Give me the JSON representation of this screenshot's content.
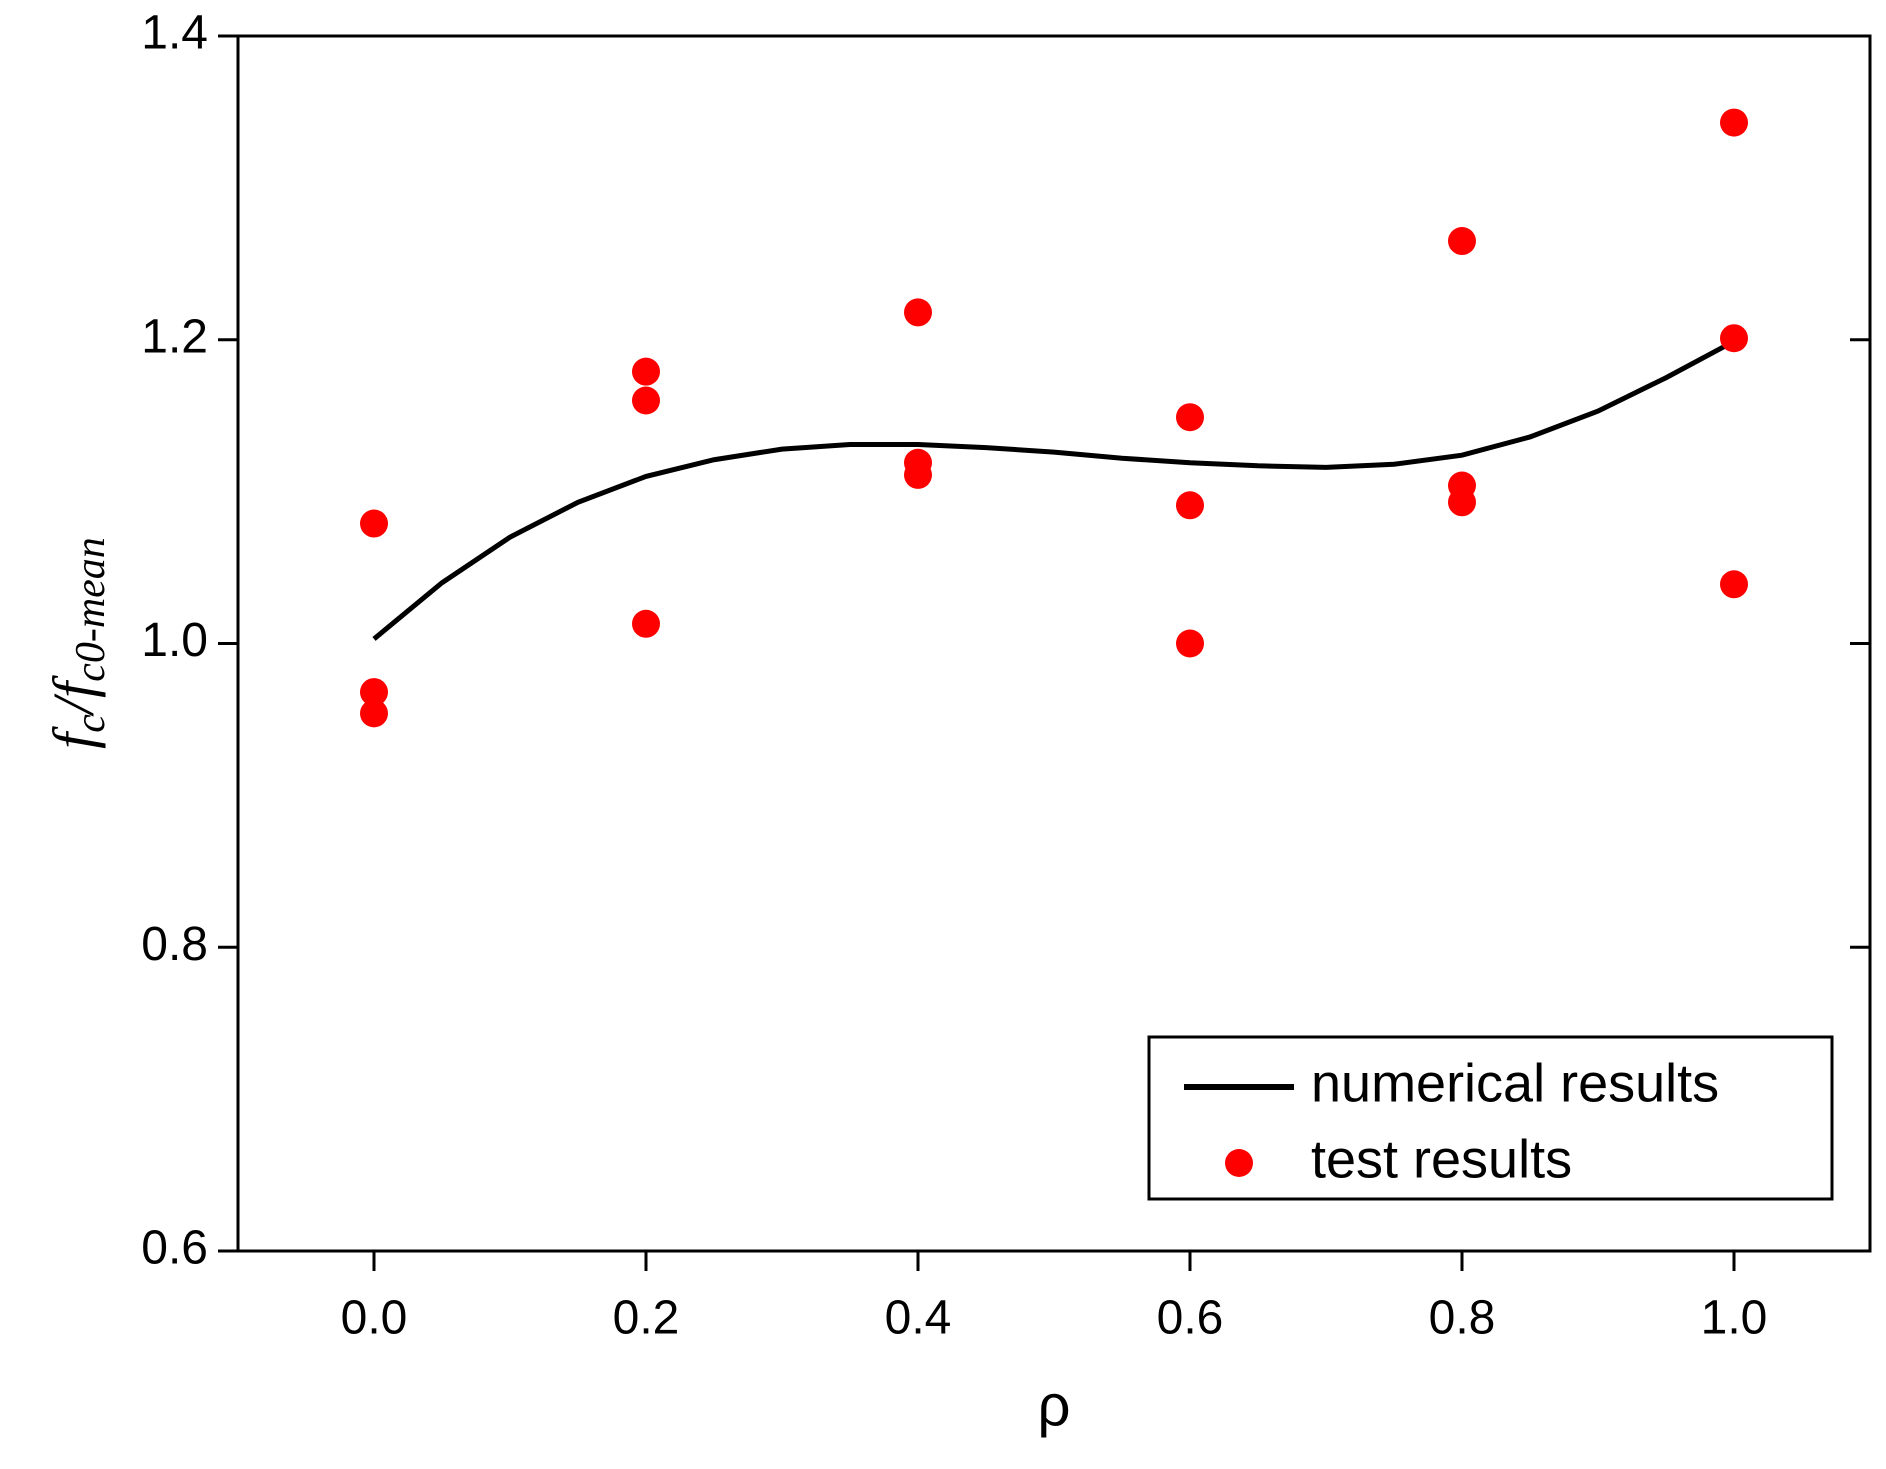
{
  "chart_data": {
    "type": "scatter",
    "xlabel": "ρ",
    "ylabel": [
      "f",
      "c",
      "/f",
      "c0-mean"
    ],
    "xlim": [
      -0.1,
      1.1
    ],
    "ylim": [
      0.6,
      1.4
    ],
    "xticks": [
      {
        "value": 0,
        "label": "0.0"
      },
      0.2,
      0.4,
      0.6,
      0.8,
      {
        "value": 1,
        "label": "1.0"
      }
    ],
    "yticks": [
      0.6,
      0.8,
      {
        "value": 1,
        "label": "1.0"
      },
      1.2,
      1.4
    ],
    "legend": "lower right",
    "series": [
      {
        "name": "numerical results",
        "color": "#000000",
        "mode": "line",
        "x": [
          0,
          0.05,
          0.1,
          0.15,
          0.2,
          0.25,
          0.3,
          0.35,
          0.4,
          0.45,
          0.5,
          0.55,
          0.6,
          0.65,
          0.7,
          0.75,
          0.8,
          0.85,
          0.9,
          0.95,
          1.0
        ],
        "values": [
          1.003,
          1.04,
          1.07,
          1.093,
          1.11,
          1.121,
          1.128,
          1.131,
          1.131,
          1.129,
          1.126,
          1.122,
          1.119,
          1.117,
          1.116,
          1.118,
          1.124,
          1.136,
          1.153,
          1.175,
          1.199
        ]
      },
      {
        "name": "test results",
        "color": "#ff0000",
        "mode": "markers",
        "x": [
          0,
          0,
          0,
          0.2,
          0.2,
          0.2,
          0.4,
          0.4,
          0.4,
          0.6,
          0.6,
          0.6,
          0.8,
          0.8,
          0.8,
          1.0,
          1.0,
          1.0
        ],
        "values": [
          1.079,
          0.968,
          0.954,
          1.179,
          1.16,
          1.013,
          1.218,
          1.119,
          1.111,
          1.149,
          1.091,
          1.0,
          1.265,
          1.104,
          1.093,
          1.343,
          1.201,
          1.039
        ]
      }
    ]
  }
}
